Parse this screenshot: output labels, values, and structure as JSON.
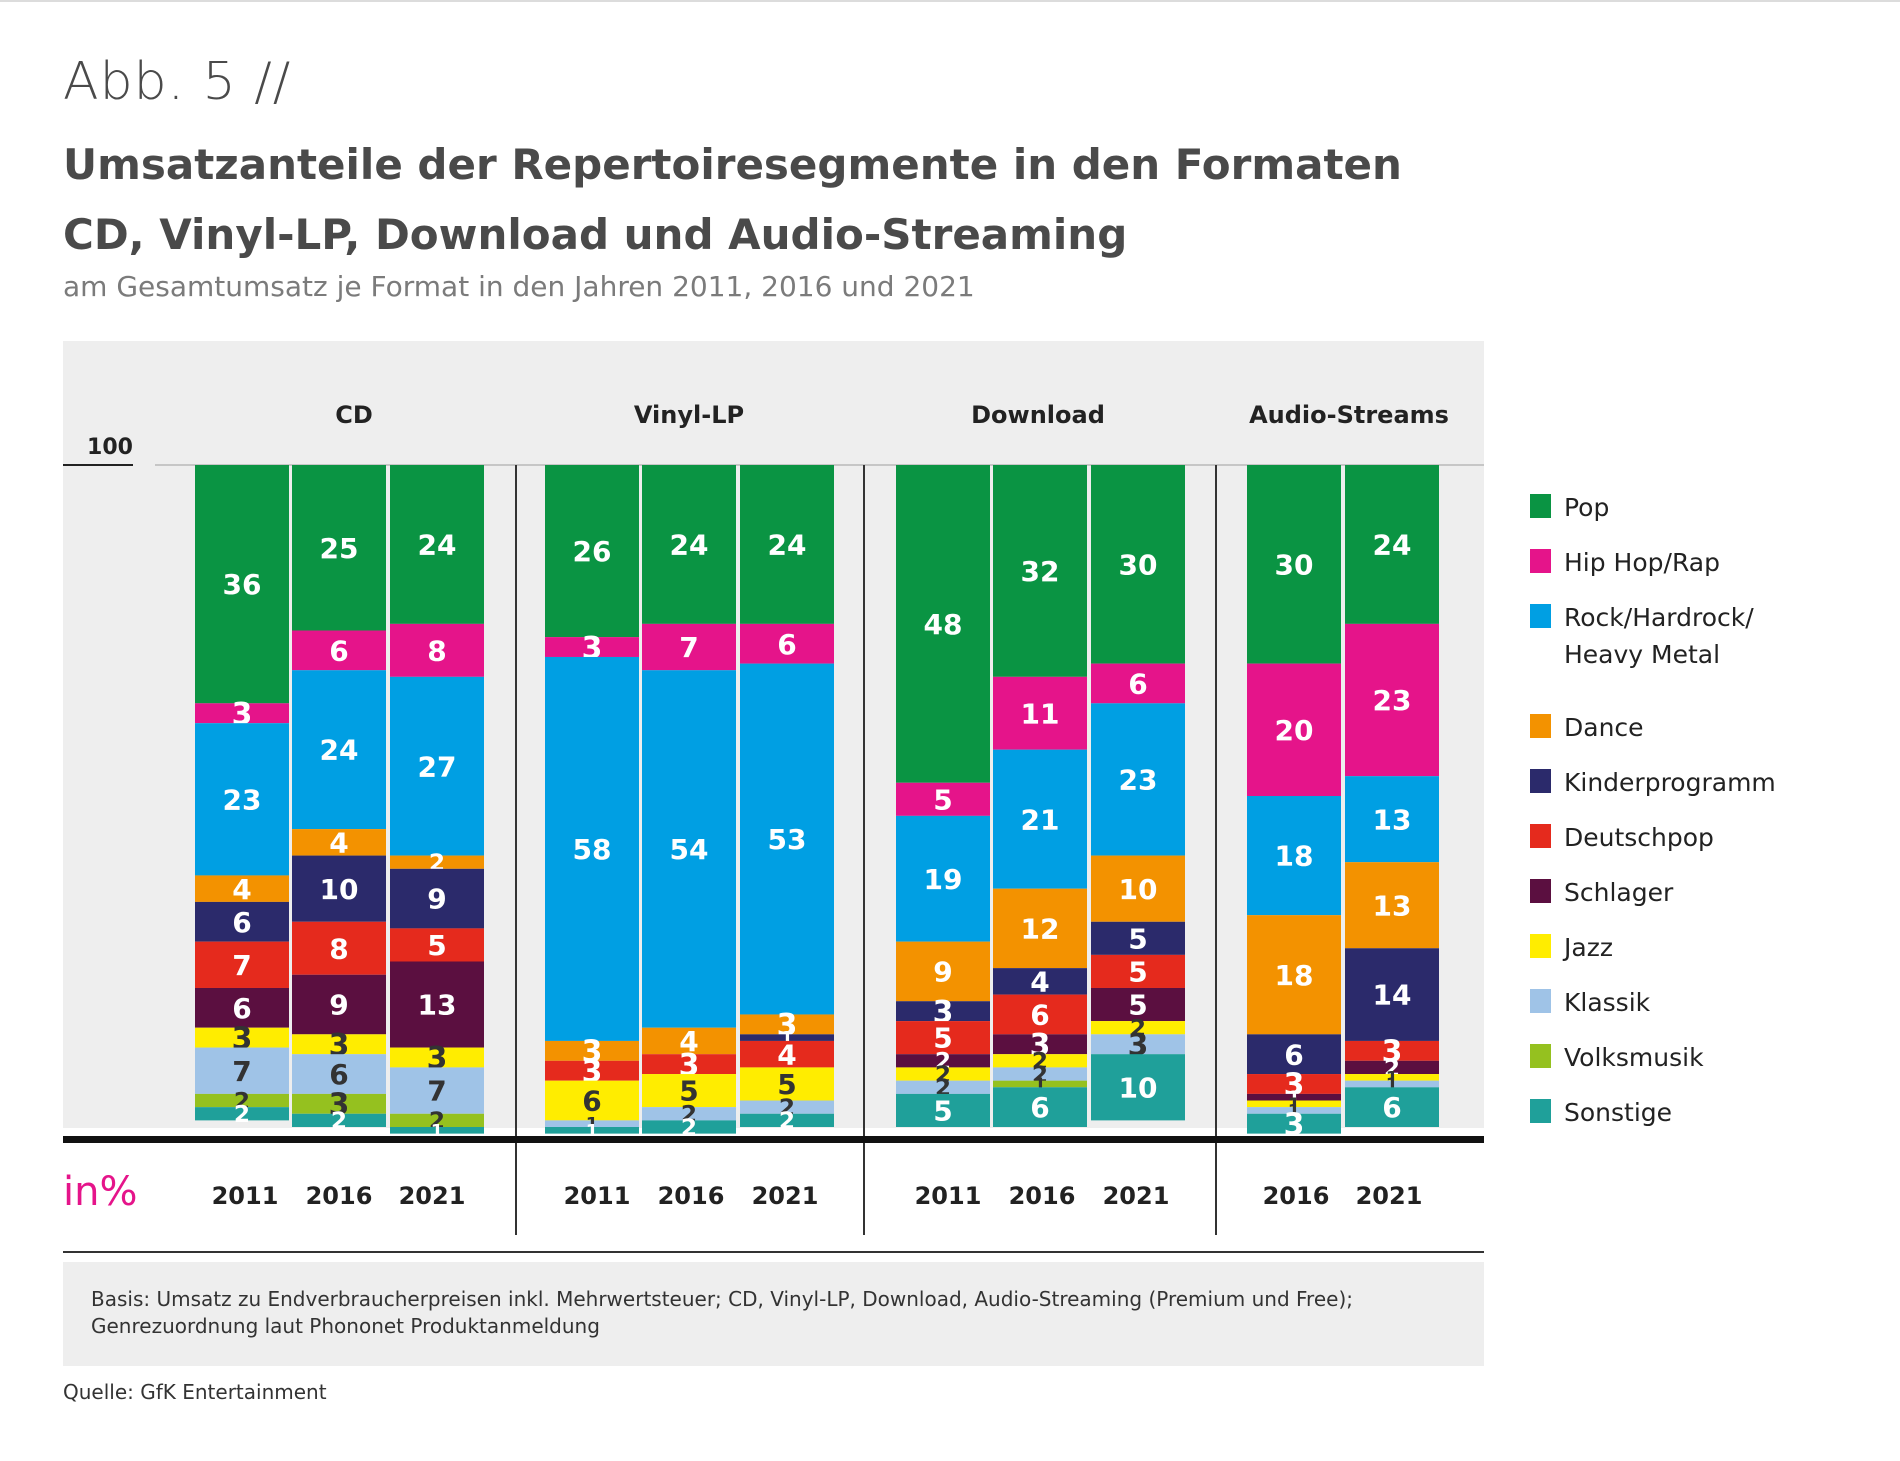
{
  "header": {
    "abb": "Abb. 5 //",
    "title_line1": "Umsatzanteile der Repertoiresegmente in den Formaten",
    "title_line2": "CD, Vinyl-LP, Download und Audio-Streaming",
    "subtitle": "am Gesamtumsatz je Format in den Jahren 2011, 2016 und 2021"
  },
  "footer": {
    "basis_line1": "Basis: Umsatz zu Endverbraucherpreisen inkl. Mehrwertsteuer; CD, Vinyl-LP, Download, Audio-Streaming (Premium und Free);",
    "basis_line2": "Genrezuordnung laut Phononet Produktanmeldung",
    "quelle": "Quelle: GfK Entertainment"
  },
  "chart_data": {
    "type": "bar",
    "stacked": true,
    "unit_label": "in%",
    "y_top_label": "100",
    "ylim": [
      0,
      100
    ],
    "legend_position": "right",
    "segments": [
      "Pop",
      "Hip Hop/Rap",
      "Rock/Hardrock/ Heavy Metal",
      "Dance",
      "Kinderprogramm",
      "Deutschpop",
      "Schlager",
      "Jazz",
      "Klassik",
      "Volksmusik",
      "Sonstige"
    ],
    "legend_lines": [
      [
        "Pop"
      ],
      [
        "Hip Hop/Rap"
      ],
      [
        "Rock/Hardrock/",
        "Heavy Metal"
      ],
      [
        "Dance"
      ],
      [
        "Kinderprogramm"
      ],
      [
        "Deutschpop"
      ],
      [
        "Schlager"
      ],
      [
        "Jazz"
      ],
      [
        "Klassik"
      ],
      [
        "Volksmusik"
      ],
      [
        "Sonstige"
      ]
    ],
    "colors": [
      "#0a9443",
      "#e5148a",
      "#009fe3",
      "#f39200",
      "#2b2a6b",
      "#e52a1d",
      "#5b0f40",
      "#ffed00",
      "#9fc3e7",
      "#95c11f",
      "#1fa09a"
    ],
    "groups": [
      {
        "name": "CD",
        "bars": [
          {
            "year": "2011",
            "values": [
              36,
              3,
              23,
              4,
              6,
              7,
              6,
              3,
              7,
              2,
              2
            ]
          },
          {
            "year": "2016",
            "values": [
              25,
              6,
              24,
              4,
              10,
              8,
              9,
              3,
              6,
              3,
              2
            ]
          },
          {
            "year": "2021",
            "values": [
              24,
              8,
              27,
              2,
              9,
              5,
              13,
              3,
              7,
              2,
              1
            ]
          }
        ]
      },
      {
        "name": "Vinyl-LP",
        "bars": [
          {
            "year": "2011",
            "values": [
              26,
              3,
              58,
              3,
              0,
              3,
              0,
              6,
              1,
              0,
              1
            ]
          },
          {
            "year": "2016",
            "values": [
              24,
              7,
              54,
              4,
              0,
              3,
              0,
              5,
              2,
              0,
              2
            ]
          },
          {
            "year": "2021",
            "values": [
              24,
              6,
              53,
              3,
              1,
              4,
              0,
              5,
              2,
              0,
              2
            ]
          }
        ]
      },
      {
        "name": "Download",
        "bars": [
          {
            "year": "2011",
            "values": [
              48,
              5,
              19,
              9,
              3,
              5,
              2,
              2,
              2,
              0,
              5
            ]
          },
          {
            "year": "2016",
            "values": [
              32,
              11,
              21,
              12,
              4,
              6,
              3,
              2,
              2,
              1,
              6
            ]
          },
          {
            "year": "2021",
            "values": [
              30,
              6,
              23,
              10,
              5,
              5,
              5,
              2,
              3,
              0,
              10
            ]
          }
        ]
      },
      {
        "name": "Audio-Streams",
        "bars": [
          {
            "year": "2016",
            "values": [
              30,
              20,
              18,
              18,
              6,
              3,
              1,
              1,
              1,
              0,
              3
            ]
          },
          {
            "year": "2021",
            "values": [
              24,
              23,
              13,
              13,
              14,
              3,
              2,
              1,
              1,
              0,
              6
            ]
          }
        ]
      }
    ]
  }
}
